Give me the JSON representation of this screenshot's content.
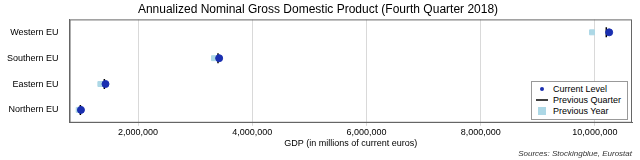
{
  "chart_data": {
    "type": "dot",
    "orientation": "horizontal",
    "title": "Annualized Nominal Gross Domestic Product (Fourth Quarter 2018)",
    "x_label": "GDP (in millions of current euros)",
    "note": "Sources: Stockingblue, Eurostat",
    "categories": [
      "Western EU",
      "Southern EU",
      "Eastern EU",
      "Northern EU"
    ],
    "series": [
      {
        "name": "Current Level",
        "color": "#1a2fb0",
        "marker": "circle",
        "values": [
          10250000,
          3420000,
          1430000,
          1000000
        ]
      },
      {
        "name": "Previous Quarter",
        "color": "#000000",
        "marker": "line",
        "values": [
          10200000,
          3400000,
          1410000,
          990000
        ]
      },
      {
        "name": "Previous Year",
        "color": "#add8e6",
        "marker": "square",
        "values": [
          9950000,
          3330000,
          1340000,
          960000
        ]
      }
    ],
    "xlim": [
      800000,
      10650000
    ],
    "xticks": [
      {
        "value": 2000000,
        "label": "2,000,000"
      },
      {
        "value": 4000000,
        "label": "4,000,000"
      },
      {
        "value": 6000000,
        "label": "6,000,000"
      },
      {
        "value": 8000000,
        "label": "8,000,000"
      },
      {
        "value": 10000000,
        "label": "10,000,000"
      }
    ],
    "grid": true,
    "legend": "lower right"
  }
}
